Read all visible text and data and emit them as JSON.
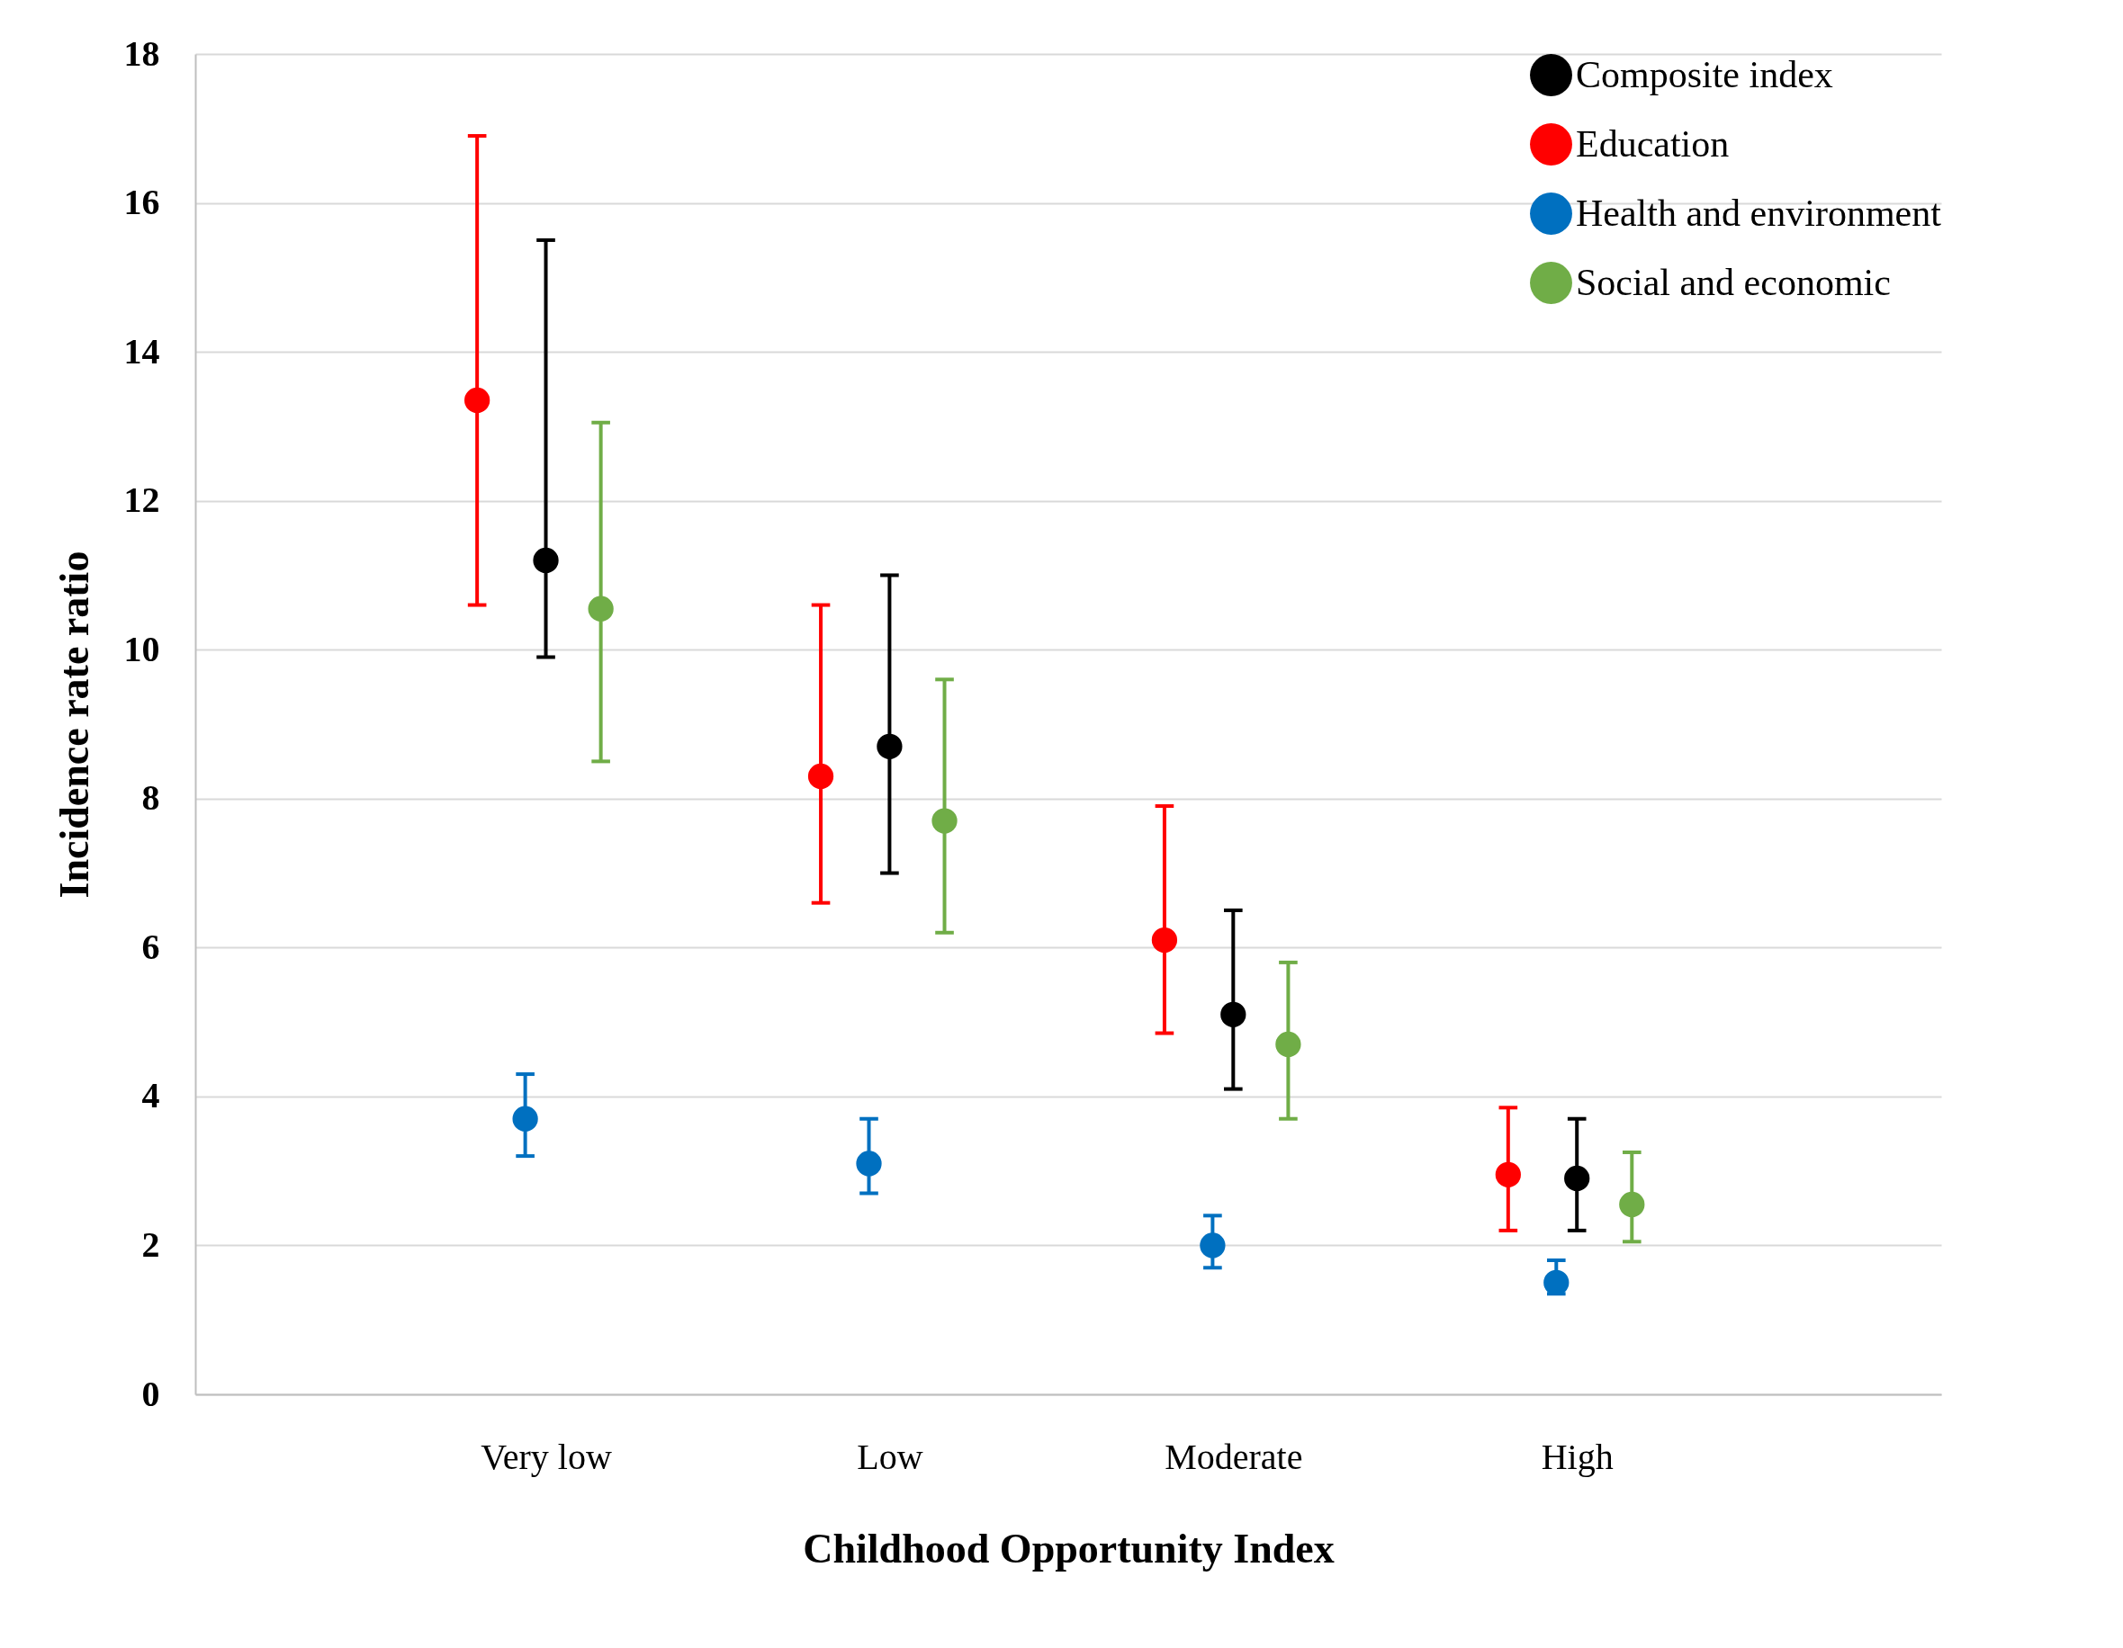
{
  "chart_data": {
    "type": "scatter",
    "xlabel": "Childhood Opportunity Index",
    "ylabel": "Incidence rate ratio",
    "categories": [
      "Very low",
      "Low",
      "Moderate",
      "High"
    ],
    "series": [
      {
        "name": "Composite index",
        "color": "#000000",
        "values": [
          11.2,
          8.7,
          5.1,
          2.9
        ],
        "errors": [
          [
            9.9,
            15.5
          ],
          [
            7.0,
            11.0
          ],
          [
            4.1,
            6.5
          ],
          [
            2.2,
            3.7
          ]
        ]
      },
      {
        "name": "Education",
        "color": "#ff0000",
        "values": [
          13.35,
          8.3,
          6.1,
          2.95
        ],
        "errors": [
          [
            10.6,
            16.9
          ],
          [
            6.6,
            10.6
          ],
          [
            4.85,
            7.9
          ],
          [
            2.2,
            3.85
          ]
        ]
      },
      {
        "name": "Health and environment",
        "color": "#0070c0",
        "values": [
          3.7,
          3.1,
          2.0,
          1.5
        ],
        "errors": [
          [
            3.2,
            4.3
          ],
          [
            2.7,
            3.7
          ],
          [
            1.7,
            2.4
          ],
          [
            1.35,
            1.8
          ]
        ]
      },
      {
        "name": "Social and economic",
        "color": "#70ad47",
        "values": [
          10.55,
          7.7,
          4.7,
          2.55
        ],
        "errors": [
          [
            8.5,
            13.05
          ],
          [
            6.2,
            9.6
          ],
          [
            3.7,
            5.8
          ],
          [
            2.05,
            3.25
          ]
        ]
      }
    ],
    "ylim": [
      0,
      18
    ],
    "yticks": [
      0,
      2,
      4,
      6,
      8,
      10,
      12,
      14,
      16,
      18
    ],
    "grid": "y",
    "legend": "top right",
    "marker": "circle"
  }
}
